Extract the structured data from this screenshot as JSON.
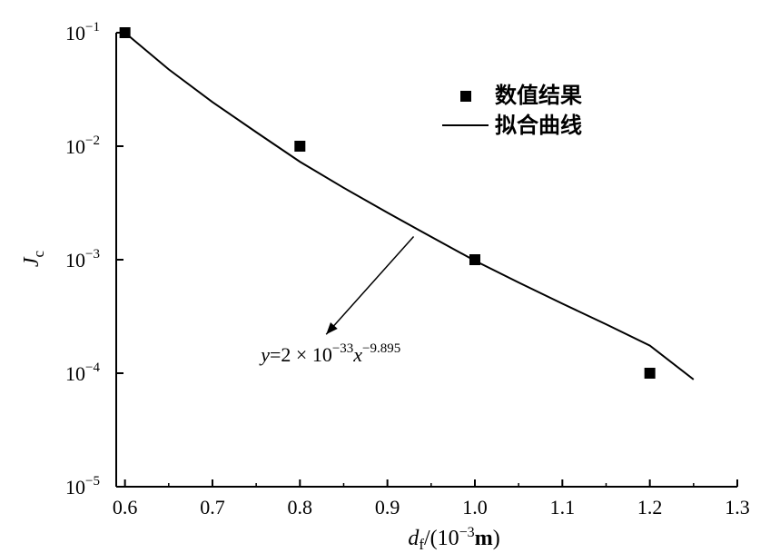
{
  "chart_data": {
    "type": "scatter",
    "x_scale": "linear",
    "y_scale": "log",
    "xlim": [
      0.59,
      1.3
    ],
    "ylim": [
      1e-05,
      0.1
    ],
    "x_ticks": [
      "0.6",
      "0.7",
      "0.8",
      "0.9",
      "1.0",
      "1.1",
      "1.2",
      "1.3"
    ],
    "y_ticks": [
      {
        "base": "10",
        "exp": "−1",
        "value": 0.1
      },
      {
        "base": "10",
        "exp": "−2",
        "value": 0.01
      },
      {
        "base": "10",
        "exp": "−3",
        "value": 0.001
      },
      {
        "base": "10",
        "exp": "−4",
        "value": 0.0001
      },
      {
        "base": "10",
        "exp": "−5",
        "value": 1e-05
      }
    ],
    "xlabel": {
      "var": "d",
      "sub": "f",
      "unit_open": "/(",
      "unit_base": "10",
      "unit_exp": "−3",
      "unit_tail": "m",
      "unit_close": ")"
    },
    "ylabel": {
      "var": "J",
      "sub": "c"
    },
    "series": [
      {
        "name": "数值结果",
        "kind": "markers",
        "color": "#000000",
        "x": [
          0.6,
          0.8,
          1.0,
          1.2
        ],
        "y": [
          0.1,
          0.01,
          0.001,
          0.0001
        ]
      },
      {
        "name": "拟合曲线",
        "kind": "line",
        "color": "#000000",
        "x": [
          0.6,
          0.65,
          0.7,
          0.75,
          0.8,
          0.85,
          0.9,
          0.95,
          1.0,
          1.05,
          1.1,
          1.15,
          1.2,
          1.25
        ],
        "y": [
          0.1,
          0.0475,
          0.0245,
          0.0133,
          0.0073,
          0.0043,
          0.0026,
          0.00159,
          0.00098,
          0.00063,
          0.00041,
          0.00027,
          0.000175,
          8.8e-05
        ]
      }
    ],
    "legend": {
      "position": "top-right"
    },
    "annotation": {
      "text_y": "y",
      "text_eq": "=2",
      "text_times": "×",
      "text_base": "10",
      "text_exp1": "−33",
      "text_x": "x",
      "text_exp2": "−9.895",
      "arrow_from": [
        0.93,
        0.0016
      ],
      "arrow_to": [
        0.83,
        0.00022
      ]
    }
  }
}
